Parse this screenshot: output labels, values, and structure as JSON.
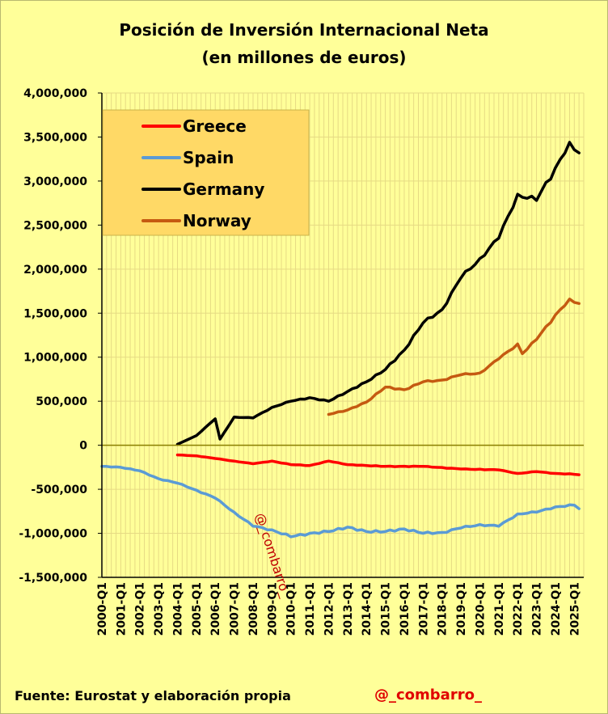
{
  "title": "Posición de Inversión Internacional Neta",
  "subtitle": "(en millones de euros)",
  "footer": {
    "source": "Fuente: Eurostat y elaboración  propia",
    "handle": "@_combarro_"
  },
  "watermark": "@_combarro_",
  "colors": {
    "background": "#FFFF99",
    "legend_bg": "#FFD966",
    "grid": "#E6DA84",
    "zero_line": "#8B8000",
    "axis": "#000000"
  },
  "chart_data": {
    "type": "line",
    "title": "Posición de Inversión Internacional Neta",
    "subtitle": "(en millones de euros)",
    "xlabel": "",
    "ylabel": "",
    "ylim": [
      -1500000,
      4000000
    ],
    "yticks": [
      4000000,
      3500000,
      3000000,
      2500000,
      2000000,
      1500000,
      1000000,
      500000,
      0,
      -500000,
      -1000000,
      -1500000
    ],
    "ytick_labels": [
      "4,000,000",
      "3,500,000",
      "3,000,000",
      "2,500,000",
      "2,000,000",
      "1,500,000",
      "1,000,000",
      "500,000",
      "0",
      "-500,000",
      "-1,000,000",
      "-1,500,000"
    ],
    "x_start_year": 2000,
    "x_quarters": 103,
    "xtick_labels": [
      "2000-Q1",
      "2001-Q1",
      "2002-Q1",
      "2003-Q1",
      "2004-Q1",
      "2005-Q1",
      "2006-Q1",
      "2007-Q1",
      "2008-Q1",
      "2009-Q1",
      "2010-Q1",
      "2011-Q1",
      "2012-Q1",
      "2013-Q1",
      "2014-Q1",
      "2015-Q1",
      "2016-Q1",
      "2017-Q1",
      "2018-Q1",
      "2019-Q1",
      "2020-Q1",
      "2021-Q1",
      "2022-Q1",
      "2023-Q1",
      "2024-Q1",
      "2025-Q1"
    ],
    "grid": true,
    "legend_position": "top-left",
    "series": [
      {
        "name": "Greece",
        "color": "#FF0000",
        "start": "2004-Q1",
        "end": "2025-Q2",
        "keyframes": [
          [
            "2004-Q1",
            -110000
          ],
          [
            "2005-Q1",
            -120000
          ],
          [
            "2006-Q1",
            -150000
          ],
          [
            "2007-Q1",
            -180000
          ],
          [
            "2008-Q1",
            -210000
          ],
          [
            "2009-Q1",
            -180000
          ],
          [
            "2010-Q1",
            -220000
          ],
          [
            "2011-Q1",
            -230000
          ],
          [
            "2012-Q1",
            -180000
          ],
          [
            "2013-Q1",
            -220000
          ],
          [
            "2015-Q1",
            -240000
          ],
          [
            "2017-Q1",
            -240000
          ],
          [
            "2019-Q1",
            -270000
          ],
          [
            "2021-Q1",
            -280000
          ],
          [
            "2022-Q1",
            -320000
          ],
          [
            "2023-Q1",
            -300000
          ],
          [
            "2024-Q1",
            -320000
          ],
          [
            "2025-Q1",
            -330000
          ],
          [
            "2025-Q2",
            -335000
          ]
        ]
      },
      {
        "name": "Spain",
        "color": "#5B9BD5",
        "start": "2000-Q1",
        "end": "2025-Q2",
        "keyframes": [
          [
            "2000-Q1",
            -240000
          ],
          [
            "2001-Q1",
            -250000
          ],
          [
            "2002-Q1",
            -290000
          ],
          [
            "2003-Q1",
            -380000
          ],
          [
            "2004-Q1",
            -430000
          ],
          [
            "2005-Q1",
            -510000
          ],
          [
            "2006-Q1",
            -600000
          ],
          [
            "2007-Q1",
            -760000
          ],
          [
            "2008-Q1",
            -920000
          ],
          [
            "2009-Q1",
            -960000
          ],
          [
            "2010-Q1",
            -1040000
          ],
          [
            "2011-Q1",
            -1000000
          ],
          [
            "2012-Q1",
            -980000
          ],
          [
            "2013-Q1",
            -930000
          ],
          [
            "2014-Q1",
            -980000
          ],
          [
            "2015-Q1",
            -980000
          ],
          [
            "2016-Q1",
            -950000
          ],
          [
            "2017-Q1",
            -1000000
          ],
          [
            "2018-Q1",
            -990000
          ],
          [
            "2019-Q1",
            -940000
          ],
          [
            "2020-Q1",
            -900000
          ],
          [
            "2021-Q1",
            -920000
          ],
          [
            "2022-Q1",
            -780000
          ],
          [
            "2023-Q1",
            -760000
          ],
          [
            "2024-Q1",
            -700000
          ],
          [
            "2025-Q1",
            -680000
          ],
          [
            "2025-Q2",
            -720000
          ]
        ]
      },
      {
        "name": "Germany",
        "color": "#000000",
        "start": "2004-Q1",
        "end": "2025-Q2",
        "keyframes": [
          [
            "2004-Q1",
            10000
          ],
          [
            "2005-Q1",
            110000
          ],
          [
            "2006-Q1",
            300000
          ],
          [
            "2006-Q2",
            70000
          ],
          [
            "2007-Q1",
            320000
          ],
          [
            "2008-Q1",
            310000
          ],
          [
            "2009-Q1",
            430000
          ],
          [
            "2010-Q1",
            500000
          ],
          [
            "2011-Q1",
            540000
          ],
          [
            "2012-Q1",
            500000
          ],
          [
            "2013-Q1",
            610000
          ],
          [
            "2014-Q1",
            720000
          ],
          [
            "2015-Q1",
            860000
          ],
          [
            "2016-Q1",
            1080000
          ],
          [
            "2017-Q1",
            1390000
          ],
          [
            "2018-Q1",
            1540000
          ],
          [
            "2019-Q1",
            1900000
          ],
          [
            "2020-Q1",
            2120000
          ],
          [
            "2021-Q1",
            2350000
          ],
          [
            "2022-Q1",
            2850000
          ],
          [
            "2023-Q1",
            2780000
          ],
          [
            "2024-Q1",
            3150000
          ],
          [
            "2024-Q4",
            3440000
          ],
          [
            "2025-Q2",
            3320000
          ]
        ]
      },
      {
        "name": "Norway",
        "color": "#C55A11",
        "start": "2012-Q1",
        "end": "2025-Q2",
        "keyframes": [
          [
            "2012-Q1",
            350000
          ],
          [
            "2013-Q1",
            400000
          ],
          [
            "2014-Q1",
            490000
          ],
          [
            "2015-Q1",
            660000
          ],
          [
            "2016-Q1",
            630000
          ],
          [
            "2017-Q1",
            720000
          ],
          [
            "2018-Q1",
            740000
          ],
          [
            "2019-Q1",
            800000
          ],
          [
            "2020-Q1",
            820000
          ],
          [
            "2021-Q1",
            980000
          ],
          [
            "2022-Q1",
            1150000
          ],
          [
            "2022-Q2",
            1040000
          ],
          [
            "2023-Q1",
            1200000
          ],
          [
            "2024-Q1",
            1480000
          ],
          [
            "2024-Q4",
            1660000
          ],
          [
            "2025-Q2",
            1610000
          ]
        ]
      }
    ]
  }
}
